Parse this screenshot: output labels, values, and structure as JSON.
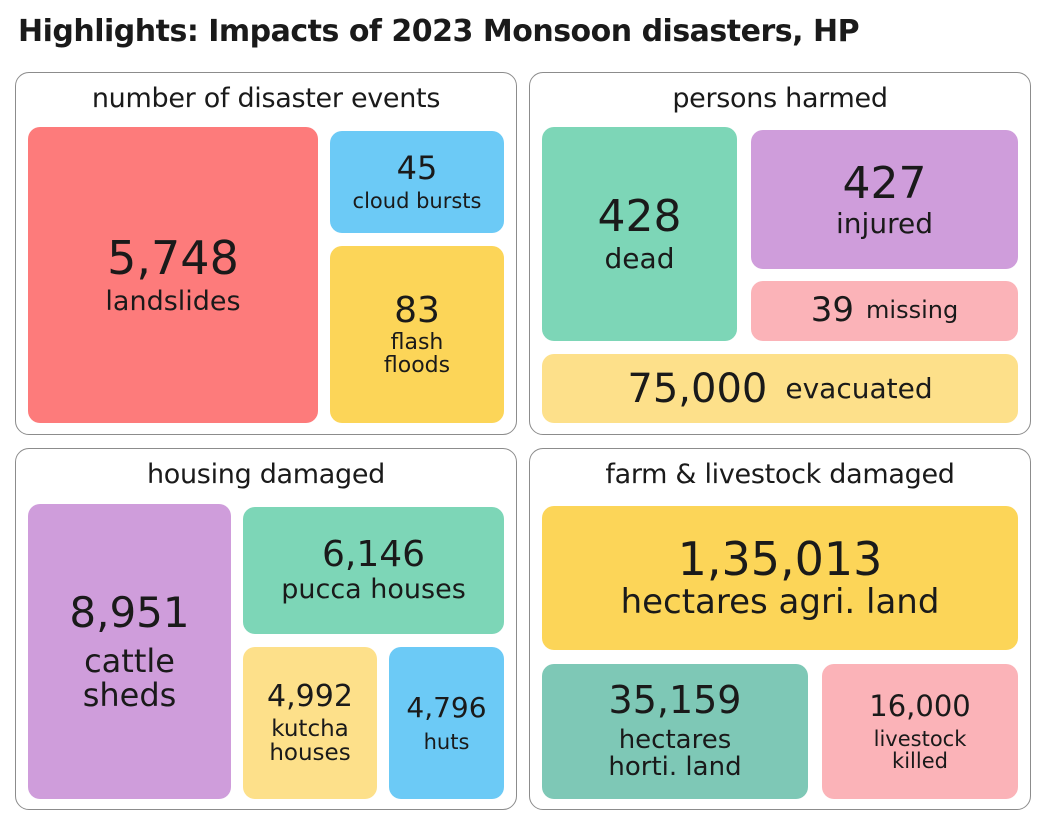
{
  "title": "Highlights: Impacts of 2023 Monsoon disasters, HP",
  "colors": {
    "red": "#fd7b7b",
    "blue": "#6ccaf6",
    "yellow": "#fcd558",
    "green": "#7dd6b7",
    "purple": "#cf9ddb",
    "pink": "#fbb3b8",
    "lightyellow": "#fde08a",
    "teal": "#7ec8b6"
  },
  "chart_data": [
    {
      "type": "treemap",
      "title": "number of disaster events",
      "items": [
        {
          "value": 5748,
          "display": "5,748",
          "label": "landslides",
          "color": "red"
        },
        {
          "value": 45,
          "display": "45",
          "label": "cloud bursts",
          "color": "blue"
        },
        {
          "value": 83,
          "display": "83",
          "label": "flash\nfloods",
          "color": "yellow"
        }
      ]
    },
    {
      "type": "treemap",
      "title": "persons harmed",
      "items": [
        {
          "value": 428,
          "display": "428",
          "label": "dead",
          "color": "green"
        },
        {
          "value": 427,
          "display": "427",
          "label": "injured",
          "color": "purple"
        },
        {
          "value": 39,
          "display": "39",
          "label": "missing",
          "color": "pink"
        },
        {
          "value": 75000,
          "display": "75,000",
          "label": "evacuated",
          "color": "lightyellow"
        }
      ]
    },
    {
      "type": "treemap",
      "title": "housing damaged",
      "items": [
        {
          "value": 8951,
          "display": "8,951",
          "label": "cattle\nsheds",
          "color": "purple"
        },
        {
          "value": 6146,
          "display": "6,146",
          "label": "pucca houses",
          "color": "green"
        },
        {
          "value": 4992,
          "display": "4,992",
          "label": "kutcha\nhouses",
          "color": "lightyellow"
        },
        {
          "value": 4796,
          "display": "4,796",
          "label": "huts",
          "color": "blue"
        }
      ]
    },
    {
      "type": "treemap",
      "title": "farm & livestock damaged",
      "items": [
        {
          "value": 135013,
          "display": "1,35,013",
          "label": "hectares agri. land",
          "color": "yellow"
        },
        {
          "value": 35159,
          "display": "35,159",
          "label": "hectares\nhorti. land",
          "color": "teal"
        },
        {
          "value": 16000,
          "display": "16,000",
          "label": "livestock\nkilled",
          "color": "pink"
        }
      ]
    }
  ]
}
